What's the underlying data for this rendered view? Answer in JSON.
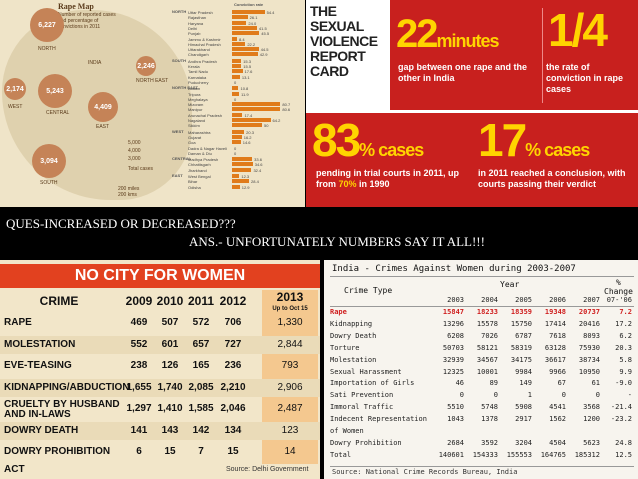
{
  "rape_map": {
    "title": "Rape Map",
    "subtitle": "Number of reported cases and percentage of convictions in 2011",
    "country_label": "INDIA",
    "bubbles": [
      "6,227",
      "2,246",
      "2,174",
      "5,243",
      "4,409",
      "3,094"
    ],
    "regions": [
      "NORTH",
      "WEST",
      "CENTRAL",
      "EAST",
      "NORTH EAST",
      "SOUTH"
    ],
    "bar_header": "Conviction rate",
    "bar_groups": [
      "NORTH",
      "SOUTH",
      "NORTH EAST",
      "EAST",
      "WEST",
      "CENTRAL"
    ],
    "bar_rows": [
      {
        "label": "Uttar Pradesh",
        "value": "54.4"
      },
      {
        "label": "Rajasthan",
        "value": "26.1"
      },
      {
        "label": "Haryana",
        "value": "24.0"
      },
      {
        "label": "Delhi",
        "value": "41.5"
      },
      {
        "label": "Punjab",
        "value": "45.5"
      },
      {
        "label": "Jammu & Kashmir",
        "value": "8.4"
      },
      {
        "label": "Himachal Pradesh",
        "value": "22.2"
      },
      {
        "label": "Uttarakhand",
        "value": "44.5"
      },
      {
        "label": "Chandigarh",
        "value": "42.9"
      },
      {
        "label": "Andhra Pradesh",
        "value": "15.3"
      },
      {
        "label": "Kerala",
        "value": "15.5"
      },
      {
        "label": "Tamil Nadu",
        "value": "17.6"
      },
      {
        "label": "Karnataka",
        "value": "13.1"
      },
      {
        "label": "Puducherry",
        "value": "0"
      },
      {
        "label": "Assam",
        "value": "10.8"
      },
      {
        "label": "Tripura",
        "value": "11.9"
      },
      {
        "label": "Meghalaya",
        "value": "0"
      },
      {
        "label": "Mizoram",
        "value": "80.7"
      },
      {
        "label": "Manipur",
        "value": "80.6"
      },
      {
        "label": "Arunachal Pradesh",
        "value": "17.4"
      },
      {
        "label": "Nagaland",
        "value": "64.2"
      },
      {
        "label": "Sikkim",
        "value": "50"
      },
      {
        "label": "Maharashtra",
        "value": "20.3"
      },
      {
        "label": "Gujarat",
        "value": "16.2"
      },
      {
        "label": "Goa",
        "value": "14.6"
      },
      {
        "label": "Dadra & Nagar Haveli",
        "value": "0"
      },
      {
        "label": "Daman & Diu",
        "value": "0"
      },
      {
        "label": "Madhya Pradesh",
        "value": "33.6"
      },
      {
        "label": "Chhattisgarh",
        "value": "34.6"
      },
      {
        "label": "Jharkhand",
        "value": "32.4"
      },
      {
        "label": "West Bengal",
        "value": "12.3"
      },
      {
        "label": "Bihar",
        "value": "28.4"
      },
      {
        "label": "Odisha",
        "value": "12.9"
      }
    ],
    "legend": [
      "5,000",
      "4,000",
      "3,000",
      "Total cases"
    ],
    "scale": "200 miles\n200 kms"
  },
  "report_card": {
    "title": "THE SEXUAL VIOLENCE REPORT CARD",
    "stat1_value": "22",
    "stat1_unit": "minutes",
    "stat1_caption": "gap between one rape and the other in India",
    "stat2_value": "1/4",
    "stat2_caption": "the rate of conviction in rape cases",
    "stat3_value": "83",
    "stat3_unit": "% cases",
    "stat3_caption_a": "pending in trial courts in 2011, up from ",
    "stat3_caption_hl": "70%",
    "stat3_caption_b": " in 1990",
    "stat4_value": "17",
    "stat4_unit": "% cases",
    "stat4_caption": "in 2011 reached a conclusion, with courts passing their verdict"
  },
  "band": {
    "question": "QUES-INCREASED OR DECREASED???",
    "answer": "ANS.-  UNFORTUNATELY  NUMBERS SAY IT ALL!!!"
  },
  "no_city": {
    "title": "NO CITY FOR WOMEN",
    "headers": [
      "CRIME",
      "2009",
      "2010",
      "2011",
      "2012",
      "2013"
    ],
    "header_2013_note": "Up to Oct 15",
    "rows": [
      [
        "RAPE",
        "469",
        "507",
        "572",
        "706",
        "1,330"
      ],
      [
        "MOLESTATION",
        "552",
        "601",
        "657",
        "727",
        "2,844"
      ],
      [
        "EVE-TEASING",
        "238",
        "126",
        "165",
        "236",
        "793"
      ],
      [
        "KIDNAPPING/ABDUCTION",
        "1,655",
        "1,740",
        "2,085",
        "2,210",
        "2,906"
      ],
      [
        "CRUELTY BY HUSBAND AND IN-LAWS",
        "1,297",
        "1,410",
        "1,585",
        "2,046",
        "2,487"
      ],
      [
        "DOWRY DEATH",
        "141",
        "143",
        "142",
        "134",
        "123"
      ],
      [
        "DOWRY PROHIBITION ACT",
        "6",
        "15",
        "7",
        "15",
        "14"
      ]
    ],
    "source": "Source: Delhi Government"
  },
  "crimes_table": {
    "title": "India  -  Crimes Against Women during 2003-2007",
    "col_crime": "Crime Type",
    "col_year": "Year",
    "col_pct": "%",
    "col_change": "Change",
    "years": [
      "2003",
      "2004",
      "2005",
      "2006",
      "2007",
      "07-'06"
    ],
    "rows": [
      {
        "name": "Rape",
        "v": [
          "15847",
          "18233",
          "18359",
          "19348",
          "20737",
          "7.2"
        ],
        "red": true
      },
      {
        "name": "Kidnapping",
        "v": [
          "13296",
          "15578",
          "15750",
          "17414",
          "20416",
          "17.2"
        ]
      },
      {
        "name": "Dowry Death",
        "v": [
          "6208",
          "7026",
          "6787",
          "7618",
          "8093",
          "6.2"
        ]
      },
      {
        "name": "Torture",
        "v": [
          "50703",
          "58121",
          "58319",
          "63128",
          "75930",
          "20.3"
        ]
      },
      {
        "name": "Molestation",
        "v": [
          "32939",
          "34567",
          "34175",
          "36617",
          "38734",
          "5.8"
        ]
      },
      {
        "name": "Sexual Harassment",
        "v": [
          "12325",
          "10001",
          "9984",
          "9966",
          "10950",
          "9.9"
        ]
      },
      {
        "name": "Importation of Girls",
        "v": [
          "46",
          "89",
          "149",
          "67",
          "61",
          "-9.0"
        ]
      },
      {
        "name": "Sati Prevention",
        "v": [
          "0",
          "0",
          "1",
          "0",
          "0",
          "-"
        ]
      },
      {
        "name": "Immoral Traffic",
        "v": [
          "5510",
          "5748",
          "5908",
          "4541",
          "3568",
          "-21.4"
        ]
      },
      {
        "name": "Indecent Representation",
        "v": [
          "1043",
          "1378",
          "2917",
          "1562",
          "1200",
          "-23.2"
        ]
      },
      {
        "name": "of Women",
        "v": [
          "",
          "",
          "",
          "",
          "",
          ""
        ]
      },
      {
        "name": "Dowry Prohibition",
        "v": [
          "2684",
          "3592",
          "3204",
          "4504",
          "5623",
          "24.8"
        ]
      },
      {
        "name": "Total",
        "v": [
          "140601",
          "154333",
          "155553",
          "164765",
          "185312",
          "12.5"
        ]
      }
    ],
    "source": "Source: National Crime Records Bureau, India"
  }
}
